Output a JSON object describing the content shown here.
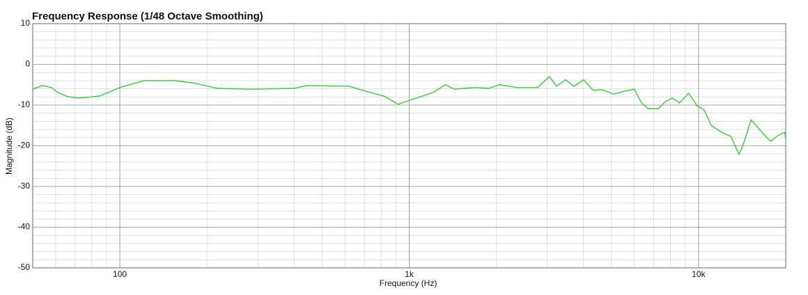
{
  "chart_data": {
    "type": "line",
    "title": "Frequency Response (1/48 Octave Smoothing)",
    "x_label": "Frequency (Hz)",
    "y_label": "Magnitude (dB)",
    "x_log": true,
    "grid": true,
    "xlim": [
      50,
      20000
    ],
    "ylim": [
      -50,
      10
    ],
    "xticks": [
      {
        "value": 100,
        "label": "100"
      },
      {
        "value": 1000,
        "label": "1k"
      },
      {
        "value": 10000,
        "label": "10k"
      }
    ],
    "xminor": [
      60,
      70,
      80,
      90,
      200,
      300,
      400,
      500,
      600,
      700,
      800,
      900,
      2000,
      3000,
      4000,
      5000,
      6000,
      7000,
      8000,
      9000
    ],
    "yticks": [
      10,
      0,
      -10,
      -20,
      -30,
      -40,
      -50
    ],
    "yminor": [
      8,
      6,
      4,
      2,
      -2,
      -4,
      -6,
      -8,
      -12,
      -14,
      -16,
      -18,
      -22,
      -24,
      -26,
      -28,
      -32,
      -34,
      -36,
      -38,
      -42,
      -44,
      -46,
      -48
    ],
    "series": [
      {
        "name": "Frequency Response",
        "color": "#33cc33",
        "x": [
          50,
          54,
          58,
          61,
          66,
          72,
          85,
          100,
          121,
          156,
          184,
          217,
          286,
          399,
          446,
          622,
          675,
          818,
          916,
          1080,
          1208,
          1337,
          1430,
          1689,
          1890,
          2048,
          2360,
          2778,
          3055,
          3228,
          3470,
          3710,
          4006,
          4323,
          4618,
          5096,
          5530,
          5998,
          6337,
          6700,
          7270,
          7685,
          8125,
          8590,
          9230,
          9890,
          10457,
          11050,
          12010,
          12920,
          13800,
          14350,
          15180,
          16790,
          17750,
          18770,
          19840,
          20000
        ],
        "values": [
          -6.1,
          -5.2,
          -5.7,
          -6.9,
          -7.9,
          -8.3,
          -7.8,
          -5.7,
          -4.0,
          -4.0,
          -4.7,
          -5.9,
          -6.1,
          -5.9,
          -5.2,
          -5.4,
          -6.2,
          -7.8,
          -9.8,
          -8.1,
          -6.9,
          -5.0,
          -6.1,
          -5.7,
          -5.9,
          -5.0,
          -5.7,
          -5.7,
          -3.0,
          -5.4,
          -3.8,
          -5.4,
          -3.8,
          -6.4,
          -6.2,
          -7.3,
          -6.6,
          -6.1,
          -9.4,
          -10.9,
          -10.9,
          -9.1,
          -8.3,
          -9.5,
          -7.1,
          -10.2,
          -11.2,
          -15.0,
          -16.7,
          -17.7,
          -22.1,
          -19.2,
          -13.6,
          -17.2,
          -18.9,
          -17.5,
          -16.7,
          -17.9
        ]
      }
    ]
  }
}
